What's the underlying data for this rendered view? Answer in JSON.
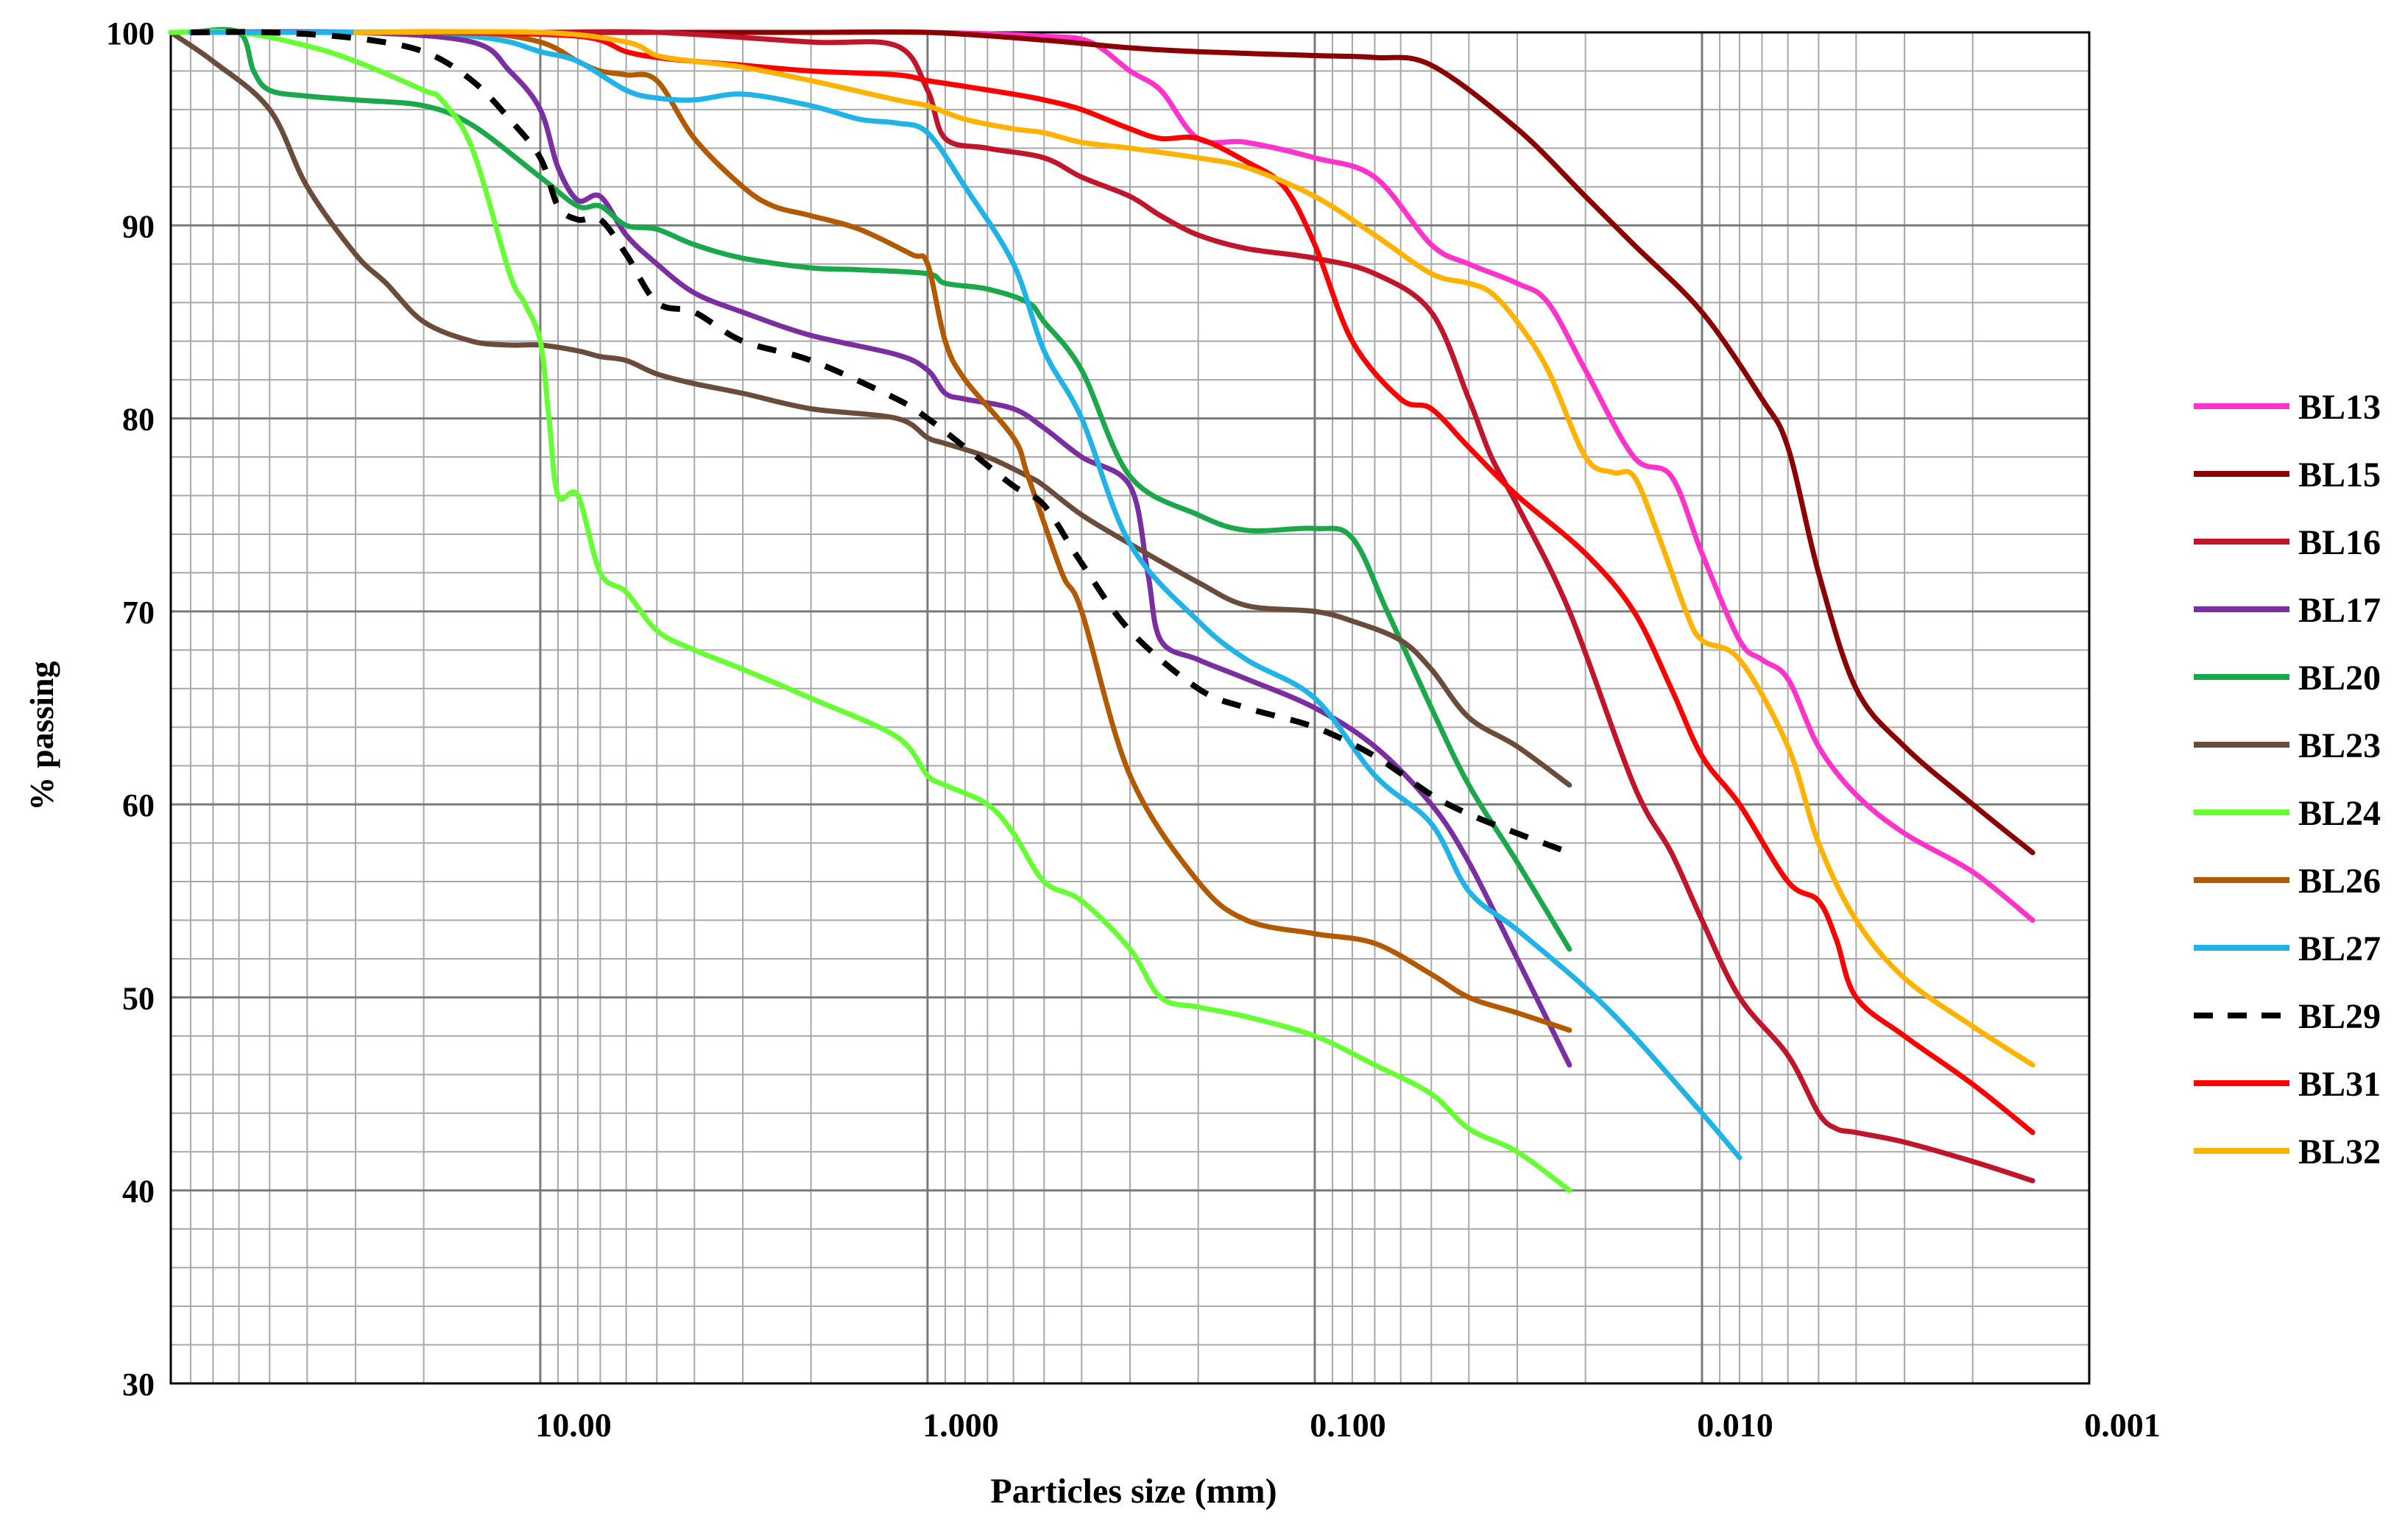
{
  "chart_data": {
    "type": "line",
    "title": "",
    "xlabel": "Particles size (mm)",
    "ylabel": "% passing",
    "x_scale": "log",
    "x_reversed": true,
    "xlim": [
      90,
      0.001
    ],
    "ylim": [
      30,
      100
    ],
    "x_ticks": [
      {
        "value": 10,
        "label": "10.00"
      },
      {
        "value": 1,
        "label": "1.000"
      },
      {
        "value": 0.1,
        "label": "0.100"
      },
      {
        "value": 0.01,
        "label": "0.010"
      },
      {
        "value": 0.001,
        "label": "0.001"
      }
    ],
    "y_ticks": [
      {
        "value": 30,
        "label": "30"
      },
      {
        "value": 40,
        "label": "40"
      },
      {
        "value": 50,
        "label": "50"
      },
      {
        "value": 60,
        "label": "60"
      },
      {
        "value": 70,
        "label": "70"
      },
      {
        "value": 80,
        "label": "80"
      },
      {
        "value": 90,
        "label": "90"
      },
      {
        "value": 100,
        "label": "100"
      }
    ],
    "grid": true,
    "legend_position": "right",
    "series": [
      {
        "name": "BL13",
        "color": "#ff33cc",
        "dash": false,
        "x": [
          50,
          20,
          10,
          5,
          2,
          1,
          0.5,
          0.38,
          0.3,
          0.25,
          0.2,
          0.15,
          0.1,
          0.07,
          0.05,
          0.04,
          0.03,
          0.025,
          0.02,
          0.015,
          0.012,
          0.01,
          0.008,
          0.007,
          0.006,
          0.005,
          0.004,
          0.003,
          0.002,
          0.0014
        ],
        "y": [
          100,
          100,
          100,
          100,
          100,
          100,
          99.8,
          99.5,
          98,
          97,
          94.5,
          94.3,
          93.5,
          92.5,
          89,
          88,
          87,
          86,
          82.5,
          78,
          77,
          73,
          68.5,
          67.5,
          66.5,
          63,
          60.5,
          58.5,
          56.5,
          54
        ]
      },
      {
        "name": "BL15",
        "color": "#8b0000",
        "dash": false,
        "x": [
          80,
          50,
          20,
          10,
          5,
          2,
          1,
          0.5,
          0.3,
          0.2,
          0.1,
          0.07,
          0.05,
          0.03,
          0.02,
          0.015,
          0.01,
          0.007,
          0.006,
          0.005,
          0.004,
          0.003,
          0.002,
          0.0014
        ],
        "y": [
          100,
          100,
          100,
          100,
          100,
          100,
          100,
          99.6,
          99.2,
          99,
          98.8,
          98.7,
          98.3,
          95,
          91.5,
          89,
          85.5,
          81,
          78.5,
          72,
          66,
          63,
          60,
          57.5
        ]
      },
      {
        "name": "BL16",
        "color": "#c0152a",
        "dash": false,
        "x": [
          20,
          10,
          5,
          2,
          1.2,
          1.0,
          0.9,
          0.7,
          0.5,
          0.4,
          0.3,
          0.25,
          0.2,
          0.15,
          0.1,
          0.07,
          0.05,
          0.04,
          0.035,
          0.03,
          0.022,
          0.015,
          0.012,
          0.01,
          0.008,
          0.006,
          0.005,
          0.0045,
          0.004,
          0.003,
          0.002,
          0.0014
        ],
        "y": [
          100,
          100,
          100,
          99.5,
          99.3,
          97,
          94.5,
          94,
          93.5,
          92.5,
          91.5,
          90.5,
          89.5,
          88.8,
          88.3,
          87.5,
          85.5,
          81,
          78,
          75.5,
          70,
          61,
          57.5,
          54,
          50,
          47,
          44,
          43.2,
          43,
          42.5,
          41.5,
          40.5
        ]
      },
      {
        "name": "BL17",
        "color": "#7b2ea0",
        "dash": false,
        "x": [
          80,
          30,
          15,
          12,
          10,
          9,
          8,
          7,
          6,
          5,
          4,
          3,
          2,
          1.2,
          1.0,
          0.9,
          0.8,
          0.6,
          0.5,
          0.4,
          0.3,
          0.27,
          0.25,
          0.2,
          0.15,
          0.1,
          0.07,
          0.05,
          0.04,
          0.03,
          0.022
        ],
        "y": [
          100,
          100,
          99.5,
          98,
          96,
          93,
          91.3,
          91.5,
          89.5,
          88,
          86.5,
          85.5,
          84.3,
          83.3,
          82.5,
          81.3,
          81,
          80.5,
          79.5,
          78,
          76.5,
          72,
          68.5,
          67.5,
          66.5,
          65,
          63,
          60,
          57,
          52,
          46.5
        ]
      },
      {
        "name": "BL20",
        "color": "#1aa84a",
        "dash": false,
        "x": [
          80,
          60,
          55,
          50,
          40,
          30,
          20,
          15,
          10,
          8,
          7,
          6,
          5,
          4,
          3,
          2,
          1.5,
          1.0,
          0.9,
          0.7,
          0.55,
          0.5,
          0.4,
          0.3,
          0.2,
          0.15,
          0.1,
          0.08,
          0.065,
          0.05,
          0.04,
          0.03,
          0.022
        ],
        "y": [
          100,
          100,
          98,
          97,
          96.7,
          96.5,
          96.2,
          95.2,
          92.5,
          91,
          91,
          90,
          89.8,
          89,
          88.3,
          87.8,
          87.7,
          87.5,
          87,
          86.7,
          86,
          85,
          82.5,
          77,
          75,
          74.2,
          74.3,
          73.8,
          70,
          65,
          61,
          57,
          52.5
        ]
      },
      {
        "name": "BL23",
        "color": "#6b4c3a",
        "dash": false,
        "x": [
          90,
          70,
          50,
          40,
          30,
          25,
          20,
          15,
          12,
          10,
          8,
          7,
          6,
          5,
          4,
          3,
          2,
          1.2,
          1.0,
          0.9,
          0.7,
          0.55,
          0.5,
          0.4,
          0.3,
          0.2,
          0.15,
          0.1,
          0.08,
          0.06,
          0.05,
          0.04,
          0.03,
          0.022
        ],
        "y": [
          100,
          98.5,
          96,
          92,
          88.5,
          87,
          85,
          84,
          83.8,
          83.8,
          83.5,
          83.2,
          83,
          82.3,
          81.8,
          81.3,
          80.5,
          80,
          79,
          78.7,
          78,
          77,
          76.5,
          75,
          73.5,
          71.5,
          70.3,
          70,
          69.5,
          68.5,
          67,
          64.5,
          63,
          61
        ]
      },
      {
        "name": "BL24",
        "color": "#66ff33",
        "dash": false,
        "x": [
          90,
          60,
          40,
          30,
          20,
          18,
          15,
          12,
          11,
          10,
          9.5,
          9,
          8,
          7,
          6,
          5,
          4,
          3,
          2,
          1.2,
          1.0,
          0.9,
          0.7,
          0.6,
          0.5,
          0.4,
          0.3,
          0.25,
          0.2,
          0.15,
          0.1,
          0.07,
          0.05,
          0.04,
          0.03,
          0.022
        ],
        "y": [
          100,
          100,
          99.3,
          98.5,
          97,
          96.5,
          94,
          87.5,
          86,
          84,
          80,
          76,
          76,
          72,
          71,
          69,
          68,
          67,
          65.5,
          63.5,
          61.5,
          61,
          60,
          58.5,
          56,
          55,
          52.5,
          50,
          49.5,
          49,
          48,
          46.5,
          45,
          43.2,
          42,
          40
        ]
      },
      {
        "name": "BL26",
        "color": "#b35900",
        "dash": false,
        "x": [
          30,
          15,
          10,
          8,
          7,
          6,
          5,
          4,
          3,
          2.5,
          2,
          1.5,
          1.1,
          1.0,
          0.9,
          0.8,
          0.6,
          0.55,
          0.45,
          0.4,
          0.3,
          0.2,
          0.15,
          0.1,
          0.07,
          0.05,
          0.04,
          0.03,
          0.022
        ],
        "y": [
          100,
          100,
          99.5,
          98.5,
          98,
          97.8,
          97.5,
          94.5,
          92,
          91,
          90.5,
          89.8,
          88.5,
          88,
          84,
          82,
          79,
          77,
          72,
          70,
          61.5,
          56,
          54,
          53.3,
          52.8,
          51.2,
          50,
          49.2,
          48.3
        ]
      },
      {
        "name": "BL27",
        "color": "#1fb3e8",
        "dash": false,
        "x": [
          80,
          50,
          20,
          15,
          12,
          10,
          8,
          6,
          5,
          4,
          3,
          2,
          1.5,
          1.2,
          1.0,
          0.8,
          0.6,
          0.5,
          0.4,
          0.3,
          0.2,
          0.15,
          0.1,
          0.07,
          0.05,
          0.04,
          0.03,
          0.02,
          0.015,
          0.01,
          0.008
        ],
        "y": [
          100,
          100,
          100,
          99.8,
          99.5,
          99,
          98.5,
          97,
          96.6,
          96.5,
          96.8,
          96.2,
          95.5,
          95.3,
          94.8,
          92,
          88,
          83.5,
          80,
          73.5,
          69.5,
          67.5,
          65.5,
          61.5,
          59,
          55.5,
          53.5,
          50.5,
          48,
          44,
          41.7
        ]
      },
      {
        "name": "BL29",
        "color": "#000000",
        "dash": true,
        "x": [
          80,
          50,
          30,
          20,
          15,
          12,
          10,
          9,
          8,
          7,
          6,
          5,
          4,
          3,
          2,
          1.2,
          1.0,
          0.8,
          0.6,
          0.5,
          0.4,
          0.3,
          0.2,
          0.15,
          0.1,
          0.07,
          0.05,
          0.04,
          0.03,
          0.022
        ],
        "y": [
          100,
          100,
          99.7,
          99,
          97.5,
          95.5,
          93.5,
          91,
          90.3,
          90.3,
          88.5,
          86,
          85.5,
          84,
          83,
          81,
          80,
          78.5,
          76.5,
          75.5,
          72.5,
          69,
          66,
          65,
          64,
          62.5,
          60.5,
          59.5,
          58.5,
          57.5
        ]
      },
      {
        "name": "BL31",
        "color": "#ff0000",
        "dash": false,
        "x": [
          20,
          8,
          6,
          5,
          4,
          3,
          2,
          1.2,
          1.0,
          0.8,
          0.6,
          0.5,
          0.4,
          0.3,
          0.25,
          0.2,
          0.15,
          0.12,
          0.1,
          0.08,
          0.06,
          0.05,
          0.04,
          0.03,
          0.02,
          0.015,
          0.012,
          0.01,
          0.008,
          0.006,
          0.005,
          0.0045,
          0.004,
          0.003,
          0.002,
          0.0014
        ],
        "y": [
          100,
          99.8,
          99,
          98.7,
          98.5,
          98.3,
          98,
          97.8,
          97.5,
          97.2,
          96.8,
          96.5,
          96,
          95,
          94.5,
          94.5,
          93.3,
          92,
          89,
          84,
          81,
          80.5,
          78.5,
          76,
          73,
          70,
          66,
          62.5,
          60,
          56,
          55,
          53,
          50,
          48,
          45.5,
          43
        ]
      },
      {
        "name": "BL32",
        "color": "#ffb300",
        "dash": false,
        "x": [
          30,
          10,
          6,
          5,
          4,
          3,
          2,
          1.2,
          1.0,
          0.8,
          0.6,
          0.5,
          0.4,
          0.3,
          0.2,
          0.15,
          0.1,
          0.07,
          0.05,
          0.04,
          0.035,
          0.03,
          0.025,
          0.02,
          0.017,
          0.015,
          0.013,
          0.011,
          0.01,
          0.008,
          0.006,
          0.005,
          0.004,
          0.003,
          0.002,
          0.0014
        ],
        "y": [
          100,
          100,
          99.5,
          98.8,
          98.5,
          98.2,
          97.5,
          96.5,
          96.2,
          95.5,
          95,
          94.8,
          94.3,
          94,
          93.5,
          93,
          91.5,
          89.5,
          87.5,
          87,
          86.5,
          85,
          82.5,
          78,
          77.2,
          77,
          74,
          70,
          68.5,
          67.5,
          63,
          58,
          54,
          51,
          48.5,
          46.5
        ]
      }
    ]
  }
}
